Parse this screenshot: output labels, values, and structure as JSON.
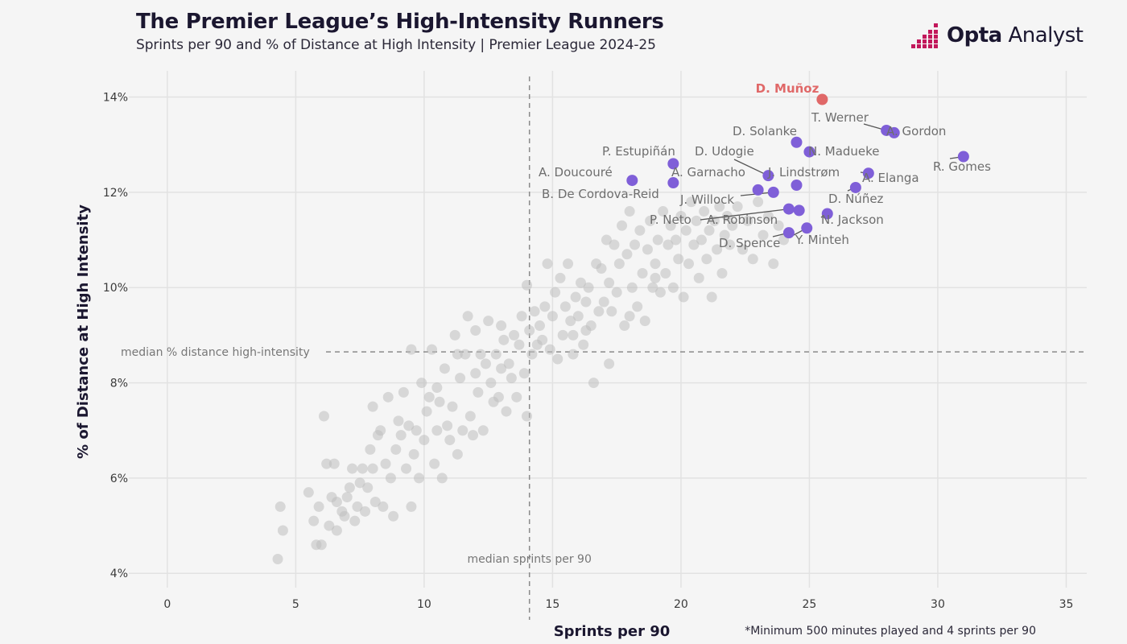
{
  "header": {
    "title": "The Premier League’s High-Intensity Runners",
    "subtitle": "Sprints per 90 and % of Distance at High Intensity | Premier League 2024-25"
  },
  "brand": {
    "bold": "Opta",
    "rest": " Analyst",
    "icon": "opta-bars-icon",
    "color": "#c2185b"
  },
  "footnote": "*Minimum 500 minutes played and 4 sprints per 90",
  "chart_data": {
    "type": "scatter",
    "xlabel": "Sprints per 90",
    "ylabel": "% of Distance at High Intensity",
    "xlim": [
      -1.5,
      35.8
    ],
    "ylim": [
      3.7,
      14.55
    ],
    "xticks": [
      0,
      5,
      10,
      15,
      20,
      25,
      30,
      35
    ],
    "yticks": [
      4,
      6,
      8,
      10,
      12,
      14
    ],
    "ytick_labels": [
      "4%",
      "6%",
      "8%",
      "10%",
      "12%",
      "14%"
    ],
    "grid": true,
    "median_x": 14.1,
    "median_y": 8.65,
    "median_x_label": "median sprints per 90",
    "median_y_label": "median % distance high-intensity",
    "colors": {
      "background": "#f5f5f5",
      "others": "#bdbdbd",
      "highlight": "#7f5fd8",
      "top": "#e06868"
    },
    "top_player": {
      "name": "D. Muñoz",
      "x": 25.5,
      "y": 13.95
    },
    "highlighted": [
      {
        "name": "T. Werner",
        "x": 28.0,
        "y": 13.3
      },
      {
        "name": "A. Gordon",
        "x": 28.3,
        "y": 13.25
      },
      {
        "name": "R. Gomes",
        "x": 31.0,
        "y": 12.75
      },
      {
        "name": "D. Solanke",
        "x": 24.5,
        "y": 13.05
      },
      {
        "name": "N. Madueke",
        "x": 25.0,
        "y": 12.85
      },
      {
        "name": "P. Estupiñán",
        "x": 19.7,
        "y": 12.6
      },
      {
        "name": "D. Udogie",
        "x": 23.4,
        "y": 12.35
      },
      {
        "name": "A. Doucouré",
        "x": 18.1,
        "y": 12.25
      },
      {
        "name": "J. Lindstrøm",
        "x": 24.5,
        "y": 12.15
      },
      {
        "name": "A. Elanga",
        "x": 27.3,
        "y": 12.4
      },
      {
        "name": "A. Garnacho",
        "x": 23.0,
        "y": 12.05
      },
      {
        "name": "B. De Cordova-Reid",
        "x": 19.7,
        "y": 12.2
      },
      {
        "name": "J. Willock",
        "x": 23.6,
        "y": 12.0
      },
      {
        "name": "D. Núñez",
        "x": 26.8,
        "y": 12.1
      },
      {
        "name": "P. Neto",
        "x": 24.2,
        "y": 11.65
      },
      {
        "name": "A. Robinson",
        "x": 24.6,
        "y": 11.62
      },
      {
        "name": "N. Jackson",
        "x": 25.7,
        "y": 11.55
      },
      {
        "name": "Y. Minteh",
        "x": 24.9,
        "y": 11.25
      },
      {
        "name": "D. Spence",
        "x": 24.2,
        "y": 11.15
      }
    ],
    "others": [
      [
        4.3,
        4.3
      ],
      [
        4.4,
        5.4
      ],
      [
        4.5,
        4.9
      ],
      [
        5.5,
        5.7
      ],
      [
        5.7,
        5.1
      ],
      [
        5.8,
        4.6
      ],
      [
        5.9,
        5.4
      ],
      [
        6.0,
        4.6
      ],
      [
        6.1,
        7.3
      ],
      [
        6.2,
        6.3
      ],
      [
        6.3,
        5.0
      ],
      [
        6.4,
        5.6
      ],
      [
        6.5,
        6.3
      ],
      [
        6.6,
        4.9
      ],
      [
        6.6,
        5.5
      ],
      [
        6.8,
        5.3
      ],
      [
        6.9,
        5.2
      ],
      [
        7.0,
        5.6
      ],
      [
        7.1,
        5.8
      ],
      [
        7.2,
        6.2
      ],
      [
        7.3,
        5.1
      ],
      [
        7.4,
        5.4
      ],
      [
        7.5,
        5.9
      ],
      [
        7.6,
        6.2
      ],
      [
        7.7,
        5.3
      ],
      [
        7.8,
        5.8
      ],
      [
        7.9,
        6.6
      ],
      [
        8.0,
        7.5
      ],
      [
        8.0,
        6.2
      ],
      [
        8.1,
        5.5
      ],
      [
        8.2,
        6.9
      ],
      [
        8.3,
        7.0
      ],
      [
        8.4,
        5.4
      ],
      [
        8.5,
        6.3
      ],
      [
        8.6,
        7.7
      ],
      [
        8.7,
        6.0
      ],
      [
        8.8,
        5.2
      ],
      [
        8.9,
        6.6
      ],
      [
        9.0,
        7.2
      ],
      [
        9.1,
        6.9
      ],
      [
        9.2,
        7.8
      ],
      [
        9.3,
        6.2
      ],
      [
        9.4,
        7.1
      ],
      [
        9.5,
        8.7
      ],
      [
        9.5,
        5.4
      ],
      [
        9.6,
        6.5
      ],
      [
        9.7,
        7.0
      ],
      [
        9.8,
        6.0
      ],
      [
        9.9,
        8.0
      ],
      [
        10.0,
        6.8
      ],
      [
        10.1,
        7.4
      ],
      [
        10.2,
        7.7
      ],
      [
        10.3,
        8.7
      ],
      [
        10.4,
        6.3
      ],
      [
        10.5,
        7.0
      ],
      [
        10.6,
        7.6
      ],
      [
        10.7,
        6.0
      ],
      [
        10.8,
        8.3
      ],
      [
        10.9,
        7.1
      ],
      [
        11.0,
        6.8
      ],
      [
        11.1,
        7.5
      ],
      [
        11.2,
        9.0
      ],
      [
        11.3,
        6.5
      ],
      [
        11.4,
        8.1
      ],
      [
        11.5,
        7.0
      ],
      [
        11.6,
        8.6
      ],
      [
        11.7,
        9.4
      ],
      [
        11.8,
        7.3
      ],
      [
        11.9,
        6.9
      ],
      [
        12.0,
        8.2
      ],
      [
        12.1,
        7.8
      ],
      [
        12.2,
        8.6
      ],
      [
        12.3,
        7.0
      ],
      [
        12.4,
        8.4
      ],
      [
        12.5,
        9.3
      ],
      [
        12.6,
        8.0
      ],
      [
        12.7,
        7.6
      ],
      [
        12.8,
        8.6
      ],
      [
        12.9,
        7.7
      ],
      [
        13.0,
        8.3
      ],
      [
        13.1,
        8.9
      ],
      [
        13.2,
        7.4
      ],
      [
        13.3,
        8.4
      ],
      [
        13.4,
        8.1
      ],
      [
        13.5,
        9.0
      ],
      [
        13.6,
        7.7
      ],
      [
        13.7,
        8.8
      ],
      [
        13.8,
        9.4
      ],
      [
        13.9,
        8.2
      ],
      [
        14.0,
        7.3
      ],
      [
        14.0,
        10.05
      ],
      [
        14.1,
        9.1
      ],
      [
        14.2,
        8.6
      ],
      [
        14.3,
        9.5
      ],
      [
        14.4,
        8.8
      ],
      [
        14.5,
        9.2
      ],
      [
        14.6,
        8.9
      ],
      [
        14.7,
        9.6
      ],
      [
        14.8,
        10.5
      ],
      [
        14.9,
        8.7
      ],
      [
        15.0,
        9.4
      ],
      [
        15.1,
        9.9
      ],
      [
        15.2,
        8.5
      ],
      [
        15.3,
        10.2
      ],
      [
        15.4,
        9.0
      ],
      [
        15.5,
        9.6
      ],
      [
        15.6,
        10.5
      ],
      [
        15.7,
        9.3
      ],
      [
        15.8,
        8.6
      ],
      [
        15.9,
        9.8
      ],
      [
        16.0,
        9.4
      ],
      [
        16.1,
        10.1
      ],
      [
        16.2,
        8.8
      ],
      [
        16.3,
        9.7
      ],
      [
        16.4,
        10.0
      ],
      [
        16.5,
        9.2
      ],
      [
        16.6,
        8.0
      ],
      [
        16.7,
        10.5
      ],
      [
        16.8,
        9.5
      ],
      [
        16.9,
        10.4
      ],
      [
        17.0,
        9.7
      ],
      [
        17.1,
        11.0
      ],
      [
        17.2,
        10.1
      ],
      [
        17.3,
        9.5
      ],
      [
        17.4,
        10.9
      ],
      [
        17.5,
        9.9
      ],
      [
        17.6,
        10.5
      ],
      [
        17.7,
        11.3
      ],
      [
        17.8,
        9.2
      ],
      [
        17.9,
        10.7
      ],
      [
        18.0,
        11.6
      ],
      [
        18.1,
        10.0
      ],
      [
        18.2,
        10.9
      ],
      [
        18.3,
        9.6
      ],
      [
        18.4,
        11.2
      ],
      [
        18.5,
        10.3
      ],
      [
        18.6,
        9.3
      ],
      [
        18.7,
        10.8
      ],
      [
        18.8,
        11.4
      ],
      [
        18.9,
        10.0
      ],
      [
        19.0,
        10.5
      ],
      [
        19.1,
        11.0
      ],
      [
        19.2,
        9.9
      ],
      [
        19.3,
        11.6
      ],
      [
        19.4,
        10.3
      ],
      [
        19.5,
        10.9
      ],
      [
        19.6,
        11.3
      ],
      [
        19.7,
        10.0
      ],
      [
        19.8,
        11.0
      ],
      [
        19.9,
        10.6
      ],
      [
        20.0,
        11.5
      ],
      [
        20.1,
        9.8
      ],
      [
        20.2,
        11.2
      ],
      [
        20.3,
        10.5
      ],
      [
        20.4,
        11.8
      ],
      [
        20.5,
        10.9
      ],
      [
        20.6,
        11.4
      ],
      [
        20.7,
        10.2
      ],
      [
        20.8,
        11.0
      ],
      [
        20.9,
        11.6
      ],
      [
        21.0,
        10.6
      ],
      [
        21.1,
        11.2
      ],
      [
        21.2,
        9.8
      ],
      [
        21.3,
        11.4
      ],
      [
        21.4,
        10.8
      ],
      [
        21.5,
        11.7
      ],
      [
        21.6,
        10.3
      ],
      [
        21.7,
        11.1
      ],
      [
        21.8,
        11.5
      ],
      [
        21.9,
        10.9
      ],
      [
        22.0,
        11.3
      ],
      [
        22.2,
        11.7
      ],
      [
        22.4,
        10.8
      ],
      [
        22.6,
        11.4
      ],
      [
        22.8,
        10.6
      ],
      [
        23.0,
        11.8
      ],
      [
        23.2,
        11.1
      ],
      [
        23.4,
        11.5
      ],
      [
        23.6,
        10.5
      ],
      [
        23.8,
        11.3
      ],
      [
        24.0,
        11.0
      ],
      [
        12.0,
        9.1
      ],
      [
        13.0,
        9.2
      ],
      [
        10.5,
        7.9
      ],
      [
        11.3,
        8.6
      ],
      [
        15.8,
        9.0
      ],
      [
        17.2,
        8.4
      ],
      [
        18.0,
        9.4
      ],
      [
        19.0,
        10.2
      ],
      [
        16.3,
        9.1
      ]
    ]
  }
}
